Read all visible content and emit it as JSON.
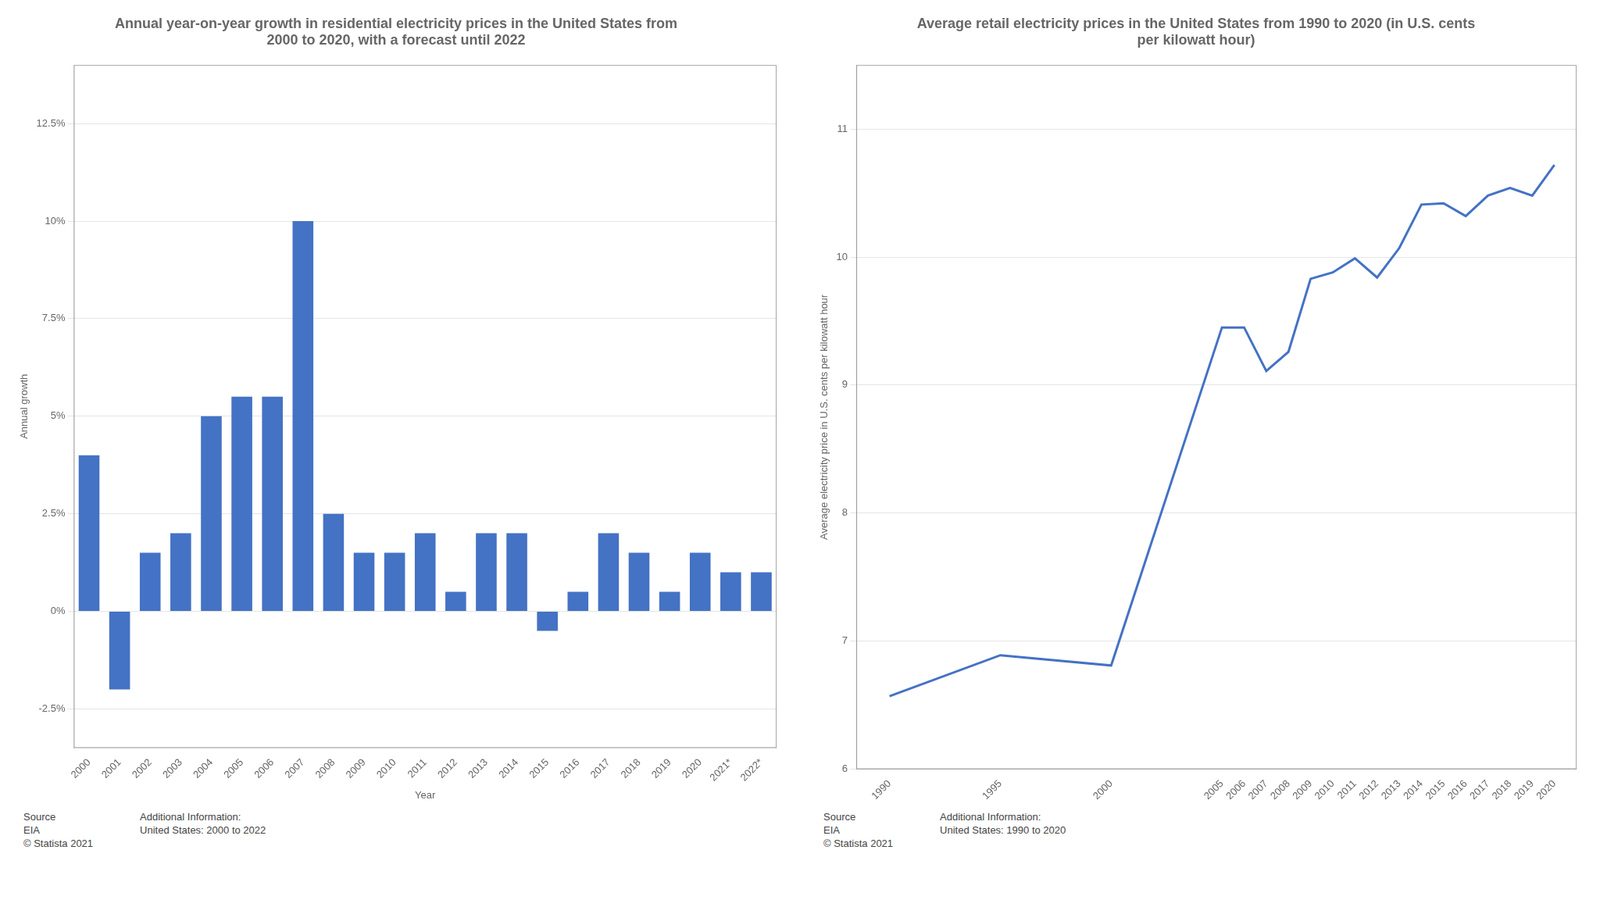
{
  "chart_data": [
    {
      "type": "bar",
      "title": "Annual year-on-year growth in residential electricity prices in the United States from\n2000 to 2020, with a forecast until 2022",
      "xlabel": "Year",
      "ylabel": "Annual growth",
      "categories": [
        "2000",
        "2001",
        "2002",
        "2003",
        "2004",
        "2005",
        "2006",
        "2007",
        "2008",
        "2009",
        "2010",
        "2011",
        "2012",
        "2013",
        "2014",
        "2015",
        "2016",
        "2017",
        "2018",
        "2019",
        "2020",
        "2021*",
        "2022*"
      ],
      "values": [
        0.04,
        -0.02,
        0.015,
        0.02,
        0.05,
        0.055,
        0.055,
        0.1,
        0.025,
        0.015,
        0.015,
        0.02,
        0.005,
        0.02,
        0.02,
        -0.005,
        0.005,
        0.02,
        0.015,
        0.005,
        0.015,
        0.01,
        0.01
      ],
      "color": "#4472C4",
      "ylim": [
        -0.035,
        0.14
      ],
      "yticks": [
        {
          "value": -0.025,
          "label": "-2.5%"
        },
        {
          "value": 0,
          "label": "0%"
        },
        {
          "value": 0.025,
          "label": "2.5%"
        },
        {
          "value": 0.05,
          "label": "5%"
        },
        {
          "value": 0.075,
          "label": "7.5%"
        },
        {
          "value": 0.1,
          "label": "10%"
        },
        {
          "value": 0.125,
          "label": "12.5%"
        }
      ],
      "grid": true,
      "annotations": [
        "Source\nEIA\n© Statista 2021",
        "Additional Information:\nUnited States: 2000 to 2022"
      ]
    },
    {
      "type": "line",
      "title": "Average retail electricity prices in the United States from 1990 to 2020 (in U.S. cents\nper kilowatt hour)",
      "ylabel": "Average electricity price in U.S. cents per kilowatt hour",
      "x": [
        1990,
        1995,
        2000,
        2005,
        2006,
        2007,
        2008,
        2009,
        2010,
        2011,
        2012,
        2013,
        2014,
        2015,
        2016,
        2017,
        2018,
        2019,
        2020
      ],
      "values": [
        6.57,
        6.89,
        6.81,
        9.45,
        9.45,
        9.11,
        9.26,
        9.83,
        9.88,
        9.99,
        9.84,
        10.07,
        10.41,
        10.42,
        10.32,
        10.48,
        10.54,
        10.48,
        10.72
      ],
      "color": "#4472C4",
      "xlim": [
        1988.5,
        2021
      ],
      "xticks": [
        1990,
        1995,
        2000,
        2005,
        2006,
        2007,
        2008,
        2009,
        2010,
        2011,
        2012,
        2013,
        2014,
        2015,
        2016,
        2017,
        2018,
        2019,
        2020
      ],
      "ylim": [
        6,
        11.5
      ],
      "yticks": [
        6,
        7,
        8,
        9,
        10,
        11
      ],
      "grid": true,
      "annotations": [
        "Source\nEIA\n© Statista 2021",
        "Additional Information:\nUnited States: 1990 to 2020"
      ]
    }
  ]
}
